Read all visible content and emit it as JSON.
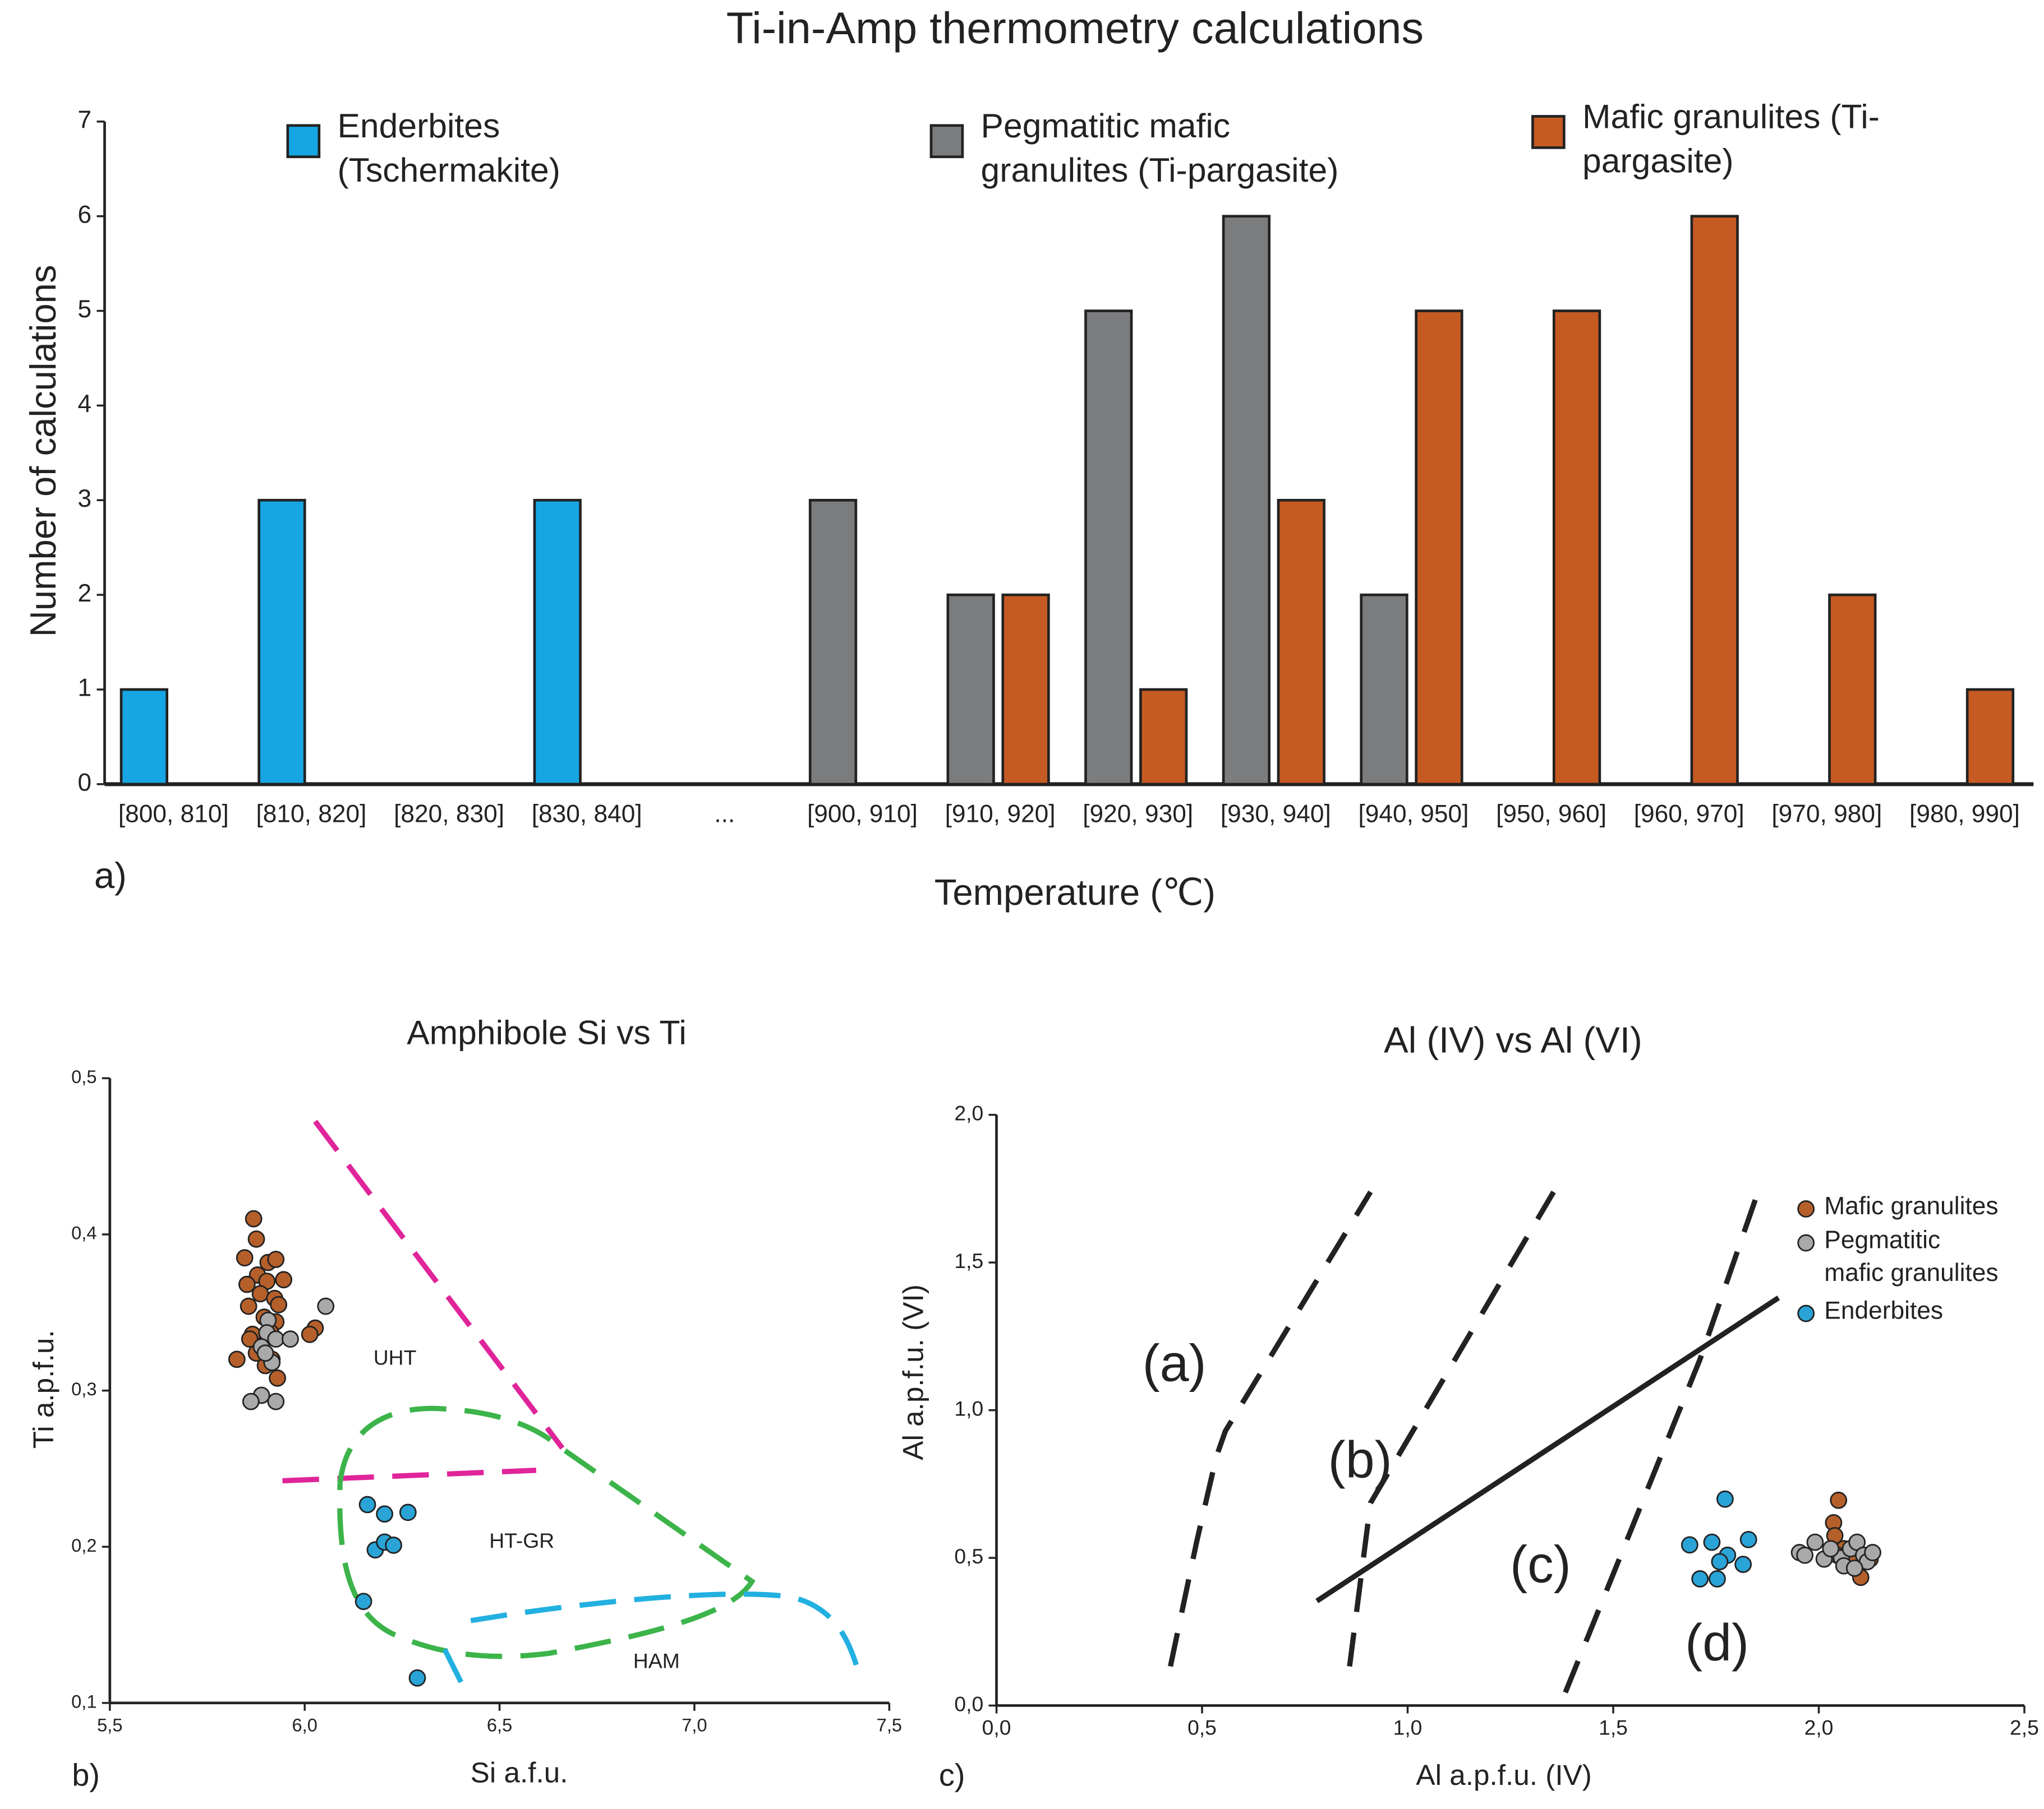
{
  "chart_data": [
    {
      "type": "bar",
      "title": "Ti-in-Amp thermometry calculations",
      "xlabel": "Temperature (℃)",
      "ylabel": "Number of calculations",
      "panel_label": "a)",
      "categories": [
        "[800, 810]",
        "[810, 820]",
        "[820, 830]",
        "[830, 840]",
        "...",
        "[900, 910]",
        "[910, 920]",
        "[920, 930]",
        "[930, 940]",
        "[940, 950]",
        "[950, 960]",
        "[960, 970]",
        "[970, 980]",
        "[980, 990]"
      ],
      "series": [
        {
          "name": "Enderbites (Tschermakite)",
          "color": "#16a6e4",
          "values": [
            1,
            3,
            0,
            3,
            null,
            0,
            0,
            0,
            0,
            0,
            0,
            0,
            0,
            0
          ]
        },
        {
          "name": "Pegmatitic mafic granulites (Ti-pargasite)",
          "color": "#7b7c7e",
          "values": [
            0,
            0,
            0,
            0,
            null,
            3,
            2,
            5,
            6,
            2,
            0,
            0,
            0,
            0
          ]
        },
        {
          "name": "Mafic granulites (Ti-pargasite)",
          "color": "#c55a22",
          "values": [
            0,
            0,
            0,
            0,
            null,
            0,
            2,
            1,
            3,
            5,
            5,
            6,
            2,
            1
          ]
        }
      ],
      "ylim": [
        0,
        7
      ],
      "yticks": [
        0,
        1,
        2,
        3,
        4,
        5,
        6,
        7
      ],
      "grid": false
    },
    {
      "type": "scatter",
      "title": "Amphibole Si vs Ti",
      "xlabel": "Si a.f.u.",
      "ylabel": "Ti a.p.f.u.",
      "panel_label": "b)",
      "annotations": [
        "UHT",
        "HT-GR",
        "HAM"
      ],
      "series": [
        {
          "color": "#b5602b",
          "x": [
            5.869,
            5.876,
            5.846,
            5.906,
            5.926,
            5.879,
            5.903,
            5.946,
            5.852,
            5.886,
            5.923,
            5.856,
            5.933,
            5.896,
            5.866,
            5.926,
            5.826,
            5.859,
            5.913,
            5.916,
            5.93,
            6.027,
            6.013,
            5.876,
            5.899
          ],
          "y": [
            0.41,
            0.397,
            0.385,
            0.382,
            0.384,
            0.374,
            0.37,
            0.371,
            0.368,
            0.362,
            0.359,
            0.354,
            0.355,
            0.347,
            0.336,
            0.344,
            0.32,
            0.333,
            0.337,
            0.32,
            0.308,
            0.34,
            0.336,
            0.324,
            0.316
          ]
        },
        {
          "color": "#a9a9a9",
          "x": [
            5.906,
            5.903,
            5.889,
            5.926,
            5.963,
            6.054,
            5.916,
            5.889,
            5.862,
            5.926,
            5.899
          ],
          "y": [
            0.345,
            0.337,
            0.328,
            0.333,
            0.333,
            0.354,
            0.318,
            0.297,
            0.293,
            0.293,
            0.324
          ]
        },
        {
          "color": "#2aa3d6",
          "x": [
            6.161,
            6.205,
            6.265,
            6.181,
            6.205,
            6.228,
            6.151,
            6.289
          ],
          "y": [
            0.227,
            0.221,
            0.222,
            0.198,
            0.203,
            0.201,
            0.165,
            0.116
          ]
        }
      ],
      "xlim": [
        5.5,
        7.5
      ],
      "xticks": [
        {
          "value": 5.5,
          "label": "5,5"
        },
        {
          "value": 6.0,
          "label": "6,0"
        },
        {
          "value": 6.5,
          "label": "6,5"
        },
        {
          "value": 7.0,
          "label": "7,0"
        },
        {
          "value": 7.5,
          "label": "7,5"
        }
      ],
      "ylim": [
        0.1,
        0.5
      ],
      "yticks": [
        {
          "value": 0.1,
          "label": "0,1"
        },
        {
          "value": 0.2,
          "label": "0,2"
        },
        {
          "value": 0.3,
          "label": "0,3"
        },
        {
          "value": 0.4,
          "label": "0,4"
        },
        {
          "value": 0.5,
          "label": "0,5"
        }
      ],
      "grid": false
    },
    {
      "type": "scatter",
      "title": "Al (IV) vs Al (VI)",
      "xlabel": "Al a.p.f.u. (IV)",
      "ylabel": "Al a.p.f.u. (VI)",
      "panel_label": "c)",
      "annotations": [
        "(a)",
        "(b)",
        "(c)",
        "(d)"
      ],
      "series": [
        {
          "name": "Mafic granulites",
          "color": "#b5602b",
          "x": [
            2.048,
            2.036,
            2.039,
            2.061,
            2.093,
            2.077,
            2.102,
            2.125,
            2.045
          ],
          "y": [
            0.695,
            0.619,
            0.575,
            0.531,
            0.465,
            0.487,
            0.434,
            0.496,
            0.509
          ]
        },
        {
          "name": "Pegmatitic mafic granulites",
          "color": "#a9a9a9",
          "x": [
            1.953,
            1.966,
            2.013,
            2.055,
            2.077,
            2.093,
            2.109,
            2.061,
            2.029,
            2.118,
            1.991,
            2.131,
            2.087
          ],
          "y": [
            0.518,
            0.509,
            0.496,
            0.5,
            0.531,
            0.553,
            0.509,
            0.473,
            0.531,
            0.487,
            0.553,
            0.518,
            0.465
          ]
        },
        {
          "name": "Enderbites",
          "color": "#2aa3d6",
          "x": [
            1.686,
            1.772,
            1.74,
            1.829,
            1.778,
            1.816,
            1.759,
            1.711,
            1.753
          ],
          "y": [
            0.544,
            0.699,
            0.553,
            0.562,
            0.509,
            0.478,
            0.487,
            0.429,
            0.429
          ]
        }
      ],
      "xlim": [
        0,
        2.5
      ],
      "xticks": [
        {
          "value": 0,
          "label": "0,0"
        },
        {
          "value": 0.5,
          "label": "0,5"
        },
        {
          "value": 1.0,
          "label": "1,0"
        },
        {
          "value": 1.5,
          "label": "1,5"
        },
        {
          "value": 2.0,
          "label": "2,0"
        },
        {
          "value": 2.5,
          "label": "2,5"
        }
      ],
      "ylim": [
        0,
        2.0
      ],
      "yticks": [
        {
          "value": 0,
          "label": "0,0"
        },
        {
          "value": 0.5,
          "label": "0,5"
        },
        {
          "value": 1.0,
          "label": "1,0"
        },
        {
          "value": 1.5,
          "label": "1,5"
        },
        {
          "value": 2.0,
          "label": "2,0"
        }
      ],
      "grid": false
    }
  ]
}
